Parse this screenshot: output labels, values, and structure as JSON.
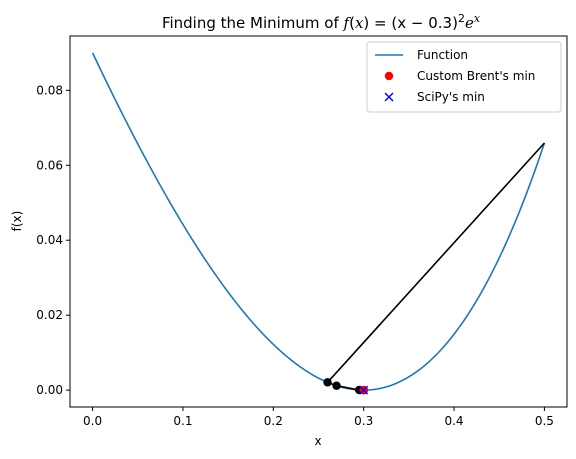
{
  "chart_data": {
    "type": "line",
    "title": {
      "text": "Finding the Minimum of ",
      "formula_lhs": "f",
      "formula_arg": "x",
      "formula_rhs": "= (x − 0.3)",
      "formula_pow": "2",
      "formula_tail": "e",
      "formula_tail_pow": "x"
    },
    "xlabel": "x",
    "ylabel": "f(x)",
    "xlim": [
      -0.025,
      0.525
    ],
    "ylim": [
      -0.0045,
      0.0945
    ],
    "xticks": [
      0.0,
      0.1,
      0.2,
      0.3,
      0.4,
      0.5
    ],
    "xtick_labels": [
      "0.0",
      "0.1",
      "0.2",
      "0.3",
      "0.4",
      "0.5"
    ],
    "yticks": [
      0.0,
      0.02,
      0.04,
      0.06,
      0.08
    ],
    "ytick_labels": [
      "0.00",
      "0.02",
      "0.04",
      "0.06",
      "0.08"
    ],
    "legend_position": "top-right",
    "series": [
      {
        "name": "Function",
        "kind": "curve",
        "expression": "(x-0.3)^2*exp(x)",
        "x_range": [
          0.0,
          0.5
        ],
        "color": "#1f77b4"
      },
      {
        "name": "Custom Brent's min",
        "kind": "marker-circle",
        "x": [
          0.3
        ],
        "y": [
          0.0
        ],
        "color": "#ff0000"
      },
      {
        "name": "SciPy's min",
        "kind": "marker-x",
        "x": [
          0.3
        ],
        "y": [
          0.0
        ],
        "color": "#0000ff"
      }
    ],
    "iteration_path": {
      "color": "#000000",
      "x": [
        0.5,
        0.26,
        0.27,
        0.295,
        0.3,
        0.3
      ]
    }
  }
}
